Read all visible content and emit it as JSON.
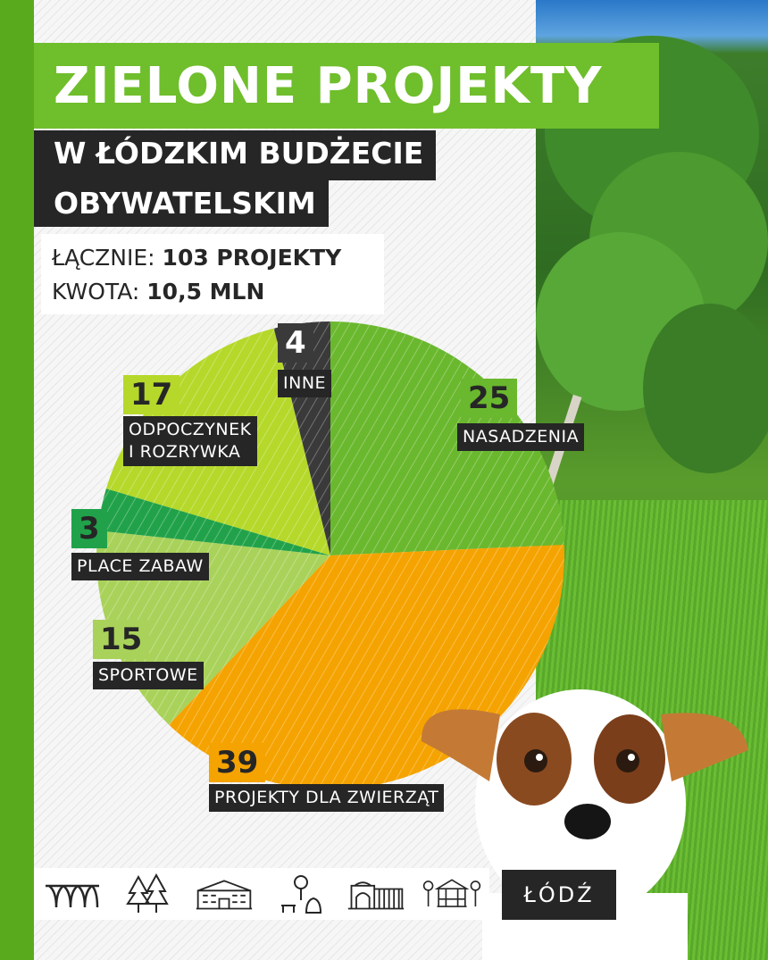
{
  "header": {
    "title": "ZIELONE PROJEKTY",
    "subtitle_line1": "W ŁÓDZKIM BUDŻECIE",
    "subtitle_line2": "OBYWATELSKIM"
  },
  "totals": {
    "count_label": "ŁĄCZNIE:",
    "count_value": "103 PROJEKTY",
    "amount_label": "KWOTA:",
    "amount_value": "10,5 MLN"
  },
  "chart_data": {
    "type": "pie",
    "title": "",
    "slices": [
      {
        "label": "NASADZENIA",
        "value": 25,
        "color": "#6ab82e"
      },
      {
        "label": "PROJEKTY DLA ZWIERZĄT",
        "value": 39,
        "color": "#f5a300"
      },
      {
        "label": "SPORTOWE",
        "value": 15,
        "color": "#a9d25a"
      },
      {
        "label": "PLACE ZABAW",
        "value": 3,
        "color": "#21a24a"
      },
      {
        "label": "ODPOCZYNEK I ROZRYWKA",
        "value": 17,
        "color": "#b5d82a"
      },
      {
        "label": "INNE",
        "value": 4,
        "color": "#3a3a3a"
      }
    ],
    "labels_display": [
      {
        "num": "25",
        "name": "NASADZENIA",
        "numColor": "#6ab82e"
      },
      {
        "num": "39",
        "name": "PROJEKTY DLA ZWIERZĄT",
        "numColor": "#f5a300"
      },
      {
        "num": "15",
        "name": "SPORTOWE",
        "numColor": "#a9d25a"
      },
      {
        "num": "3",
        "name": "PLACE ZABAW",
        "numColor": "#21a24a"
      },
      {
        "num": "17",
        "name": "ODPOCZYNEK\nI ROZRYWKA",
        "numColor": "#b5d82a"
      },
      {
        "num": "4",
        "name": "INNE",
        "numColor": "#3a3a3a"
      }
    ]
  },
  "icons": [
    "arches-icon",
    "trees-icon",
    "building-icon",
    "park-bench-icon",
    "gate-icon",
    "gazebo-icon"
  ],
  "logo": {
    "text": "ŁÓDŹ"
  }
}
